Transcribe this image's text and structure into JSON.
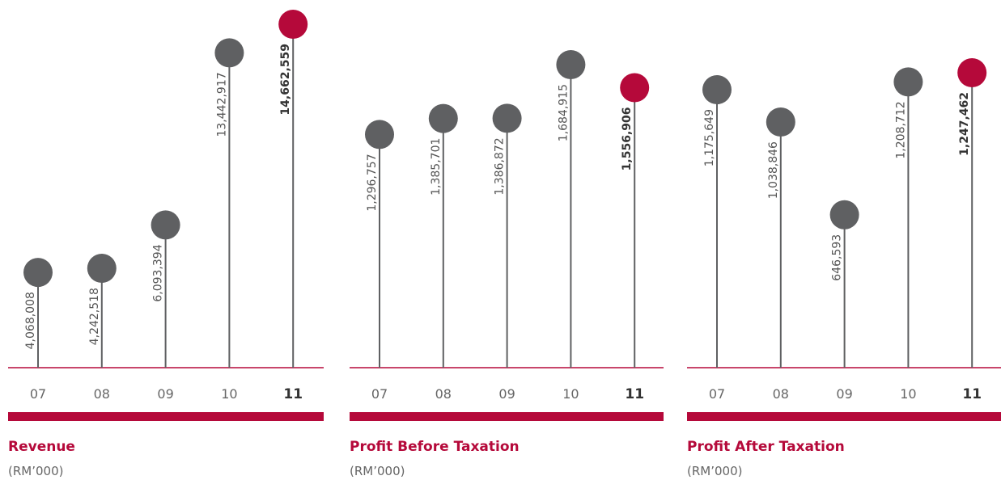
{
  "chart_data": [
    {
      "type": "lollipop",
      "title": "Revenue",
      "subtitle": "(RM’000)",
      "categories": [
        "07",
        "08",
        "09",
        "10",
        "11"
      ],
      "values": [
        4068008,
        4242518,
        6093394,
        13442917,
        14662559
      ],
      "value_labels": [
        "4,068,008",
        "4,242,518",
        "6,093,394",
        "13,442,917",
        "14,662,559"
      ],
      "colors": [
        "#5f6062",
        "#5f6062",
        "#5f6062",
        "#5f6062",
        "#b5093a"
      ]
    },
    {
      "type": "lollipop",
      "title": "Profit Before Taxation",
      "subtitle": "(RM’000)",
      "categories": [
        "07",
        "08",
        "09",
        "10",
        "11"
      ],
      "values": [
        1296757,
        1385701,
        1386872,
        1684915,
        1556906
      ],
      "value_labels": [
        "1,296,757",
        "1,385,701",
        "1,386,872",
        "1,684,915",
        "1,556,906"
      ],
      "colors": [
        "#5f6062",
        "#5f6062",
        "#5f6062",
        "#5f6062",
        "#b5093a"
      ]
    },
    {
      "type": "lollipop",
      "title": "Profit After Taxation",
      "subtitle": "(RM’000)",
      "categories": [
        "07",
        "08",
        "09",
        "10",
        "11"
      ],
      "values": [
        1175649,
        1038846,
        646593,
        1208712,
        1247462
      ],
      "value_labels": [
        "1,175,649",
        "1,038,846",
        "646,593",
        "1,208,712",
        "1,247,462"
      ],
      "colors": [
        "#5f6062",
        "#5f6062",
        "#5f6062",
        "#5f6062",
        "#b5093a"
      ]
    }
  ]
}
